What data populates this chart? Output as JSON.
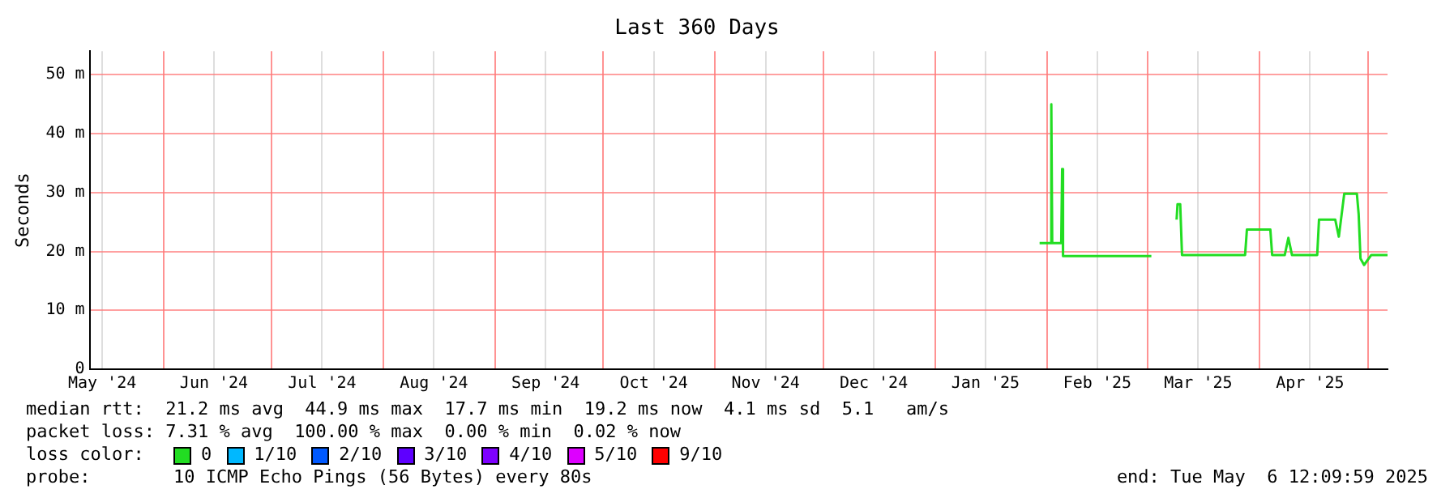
{
  "chart_data": {
    "type": "line",
    "title": "Last 360 Days",
    "ylabel": "Seconds",
    "xlim": [
      "2024-05-11T12:10",
      "2025-05-06T12:10"
    ],
    "xticks": [
      {
        "value": "2024-05-15",
        "label": "May '24"
      },
      {
        "value": "2024-06-01",
        "label": null
      },
      {
        "value": "2024-06-15",
        "label": "Jun '24"
      },
      {
        "value": "2024-07-01",
        "label": null
      },
      {
        "value": "2024-07-15",
        "label": "Jul '24"
      },
      {
        "value": "2024-08-01",
        "label": null
      },
      {
        "value": "2024-08-15",
        "label": "Aug '24"
      },
      {
        "value": "2024-09-01",
        "label": null
      },
      {
        "value": "2024-09-15",
        "label": "Sep '24"
      },
      {
        "value": "2024-10-01",
        "label": null
      },
      {
        "value": "2024-10-15",
        "label": "Oct '24"
      },
      {
        "value": "2024-11-01",
        "label": null
      },
      {
        "value": "2024-11-15",
        "label": "Nov '24"
      },
      {
        "value": "2024-12-01",
        "label": null
      },
      {
        "value": "2024-12-15",
        "label": "Dec '24"
      },
      {
        "value": "2025-01-01",
        "label": null
      },
      {
        "value": "2025-01-15",
        "label": "Jan '25"
      },
      {
        "value": "2025-02-01",
        "label": null
      },
      {
        "value": "2025-02-15",
        "label": "Feb '25"
      },
      {
        "value": "2025-03-01",
        "label": null
      },
      {
        "value": "2025-03-15",
        "label": "Mar '25"
      },
      {
        "value": "2025-04-01",
        "label": null
      },
      {
        "value": "2025-04-15",
        "label": "Apr '25"
      },
      {
        "value": "2025-05-01",
        "label": null
      }
    ],
    "ylim": [
      0,
      54
    ],
    "yticks": [
      0,
      {
        "value": 10,
        "label": "10 m"
      },
      {
        "value": 20,
        "label": "20 m"
      },
      {
        "value": 30,
        "label": "30 m"
      },
      {
        "value": 40,
        "label": "40 m"
      },
      {
        "value": 50,
        "label": "50 m"
      }
    ],
    "grid": true,
    "legend": "bottom",
    "legend_title": "loss color:",
    "x": [
      "2025-01-30T00:00",
      "2025-02-02T00:00",
      "2025-02-02T06:00",
      "2025-02-02T12:00",
      "2025-02-05T00:00",
      "2025-02-05T06:00",
      "2025-02-05T12:00",
      "2025-03-02T00:00",
      "2025-03-05T00:00",
      "2025-03-09T00:00",
      "2025-03-09T06:00",
      "2025-03-10T00:00",
      "2025-03-10T12:00",
      "2025-03-28T00:00",
      "2025-03-28T12:00",
      "2025-04-04T00:00",
      "2025-04-04T12:00",
      "2025-04-08T00:00",
      "2025-04-09T00:00",
      "2025-04-10T00:00",
      "2025-04-17T00:00",
      "2025-04-17T12:00",
      "2025-04-22T00:00",
      "2025-04-23T00:00",
      "2025-04-24T12:00",
      "2025-04-28T00:00",
      "2025-04-28T12:00",
      "2025-04-29T00:00",
      "2025-04-30T00:00",
      "2025-05-02T00:00",
      "2025-05-06T12:00"
    ],
    "series": [
      {
        "name": "0",
        "color": "#22dd22",
        "values": [
          21.4,
          21.4,
          45,
          21.4,
          21.4,
          34,
          19.2,
          19.2,
          null,
          25.4,
          28,
          28,
          19.4,
          19.4,
          23.7,
          23.7,
          19.4,
          19.4,
          22.3,
          19.4,
          19.4,
          25.4,
          25.4,
          22.5,
          29.8,
          29.8,
          26.3,
          18.8,
          17.7,
          19.4,
          19.4
        ]
      },
      {
        "name": "1/10",
        "color": "#00b8ff",
        "values": [
          null,
          null,
          null,
          null,
          null,
          null,
          null,
          null,
          null,
          null,
          null,
          null,
          null,
          null,
          null,
          null,
          null,
          null,
          null,
          null,
          null,
          null,
          null,
          null,
          null,
          null,
          null,
          null,
          null,
          null,
          null
        ]
      },
      {
        "name": "2/10",
        "color": "#0059ff",
        "values": [
          null,
          null,
          null,
          null,
          null,
          null,
          null,
          null,
          null,
          null,
          null,
          null,
          null,
          null,
          null,
          null,
          null,
          null,
          null,
          null,
          null,
          null,
          null,
          null,
          null,
          null,
          null,
          null,
          null,
          null,
          null
        ]
      },
      {
        "name": "3/10",
        "color": "#5e00ff",
        "values": [
          null,
          null,
          null,
          null,
          null,
          null,
          null,
          null,
          null,
          null,
          null,
          null,
          null,
          null,
          null,
          null,
          null,
          null,
          null,
          null,
          null,
          null,
          null,
          null,
          null,
          null,
          null,
          null,
          null,
          null,
          null
        ]
      },
      {
        "name": "4/10",
        "color": "#7e00ff",
        "values": [
          null,
          null,
          null,
          null,
          null,
          null,
          null,
          null,
          null,
          null,
          null,
          null,
          null,
          null,
          null,
          null,
          null,
          null,
          null,
          null,
          null,
          null,
          null,
          null,
          null,
          null,
          null,
          null,
          null,
          null,
          null
        ]
      },
      {
        "name": "5/10",
        "color": "#dd00ff",
        "values": [
          null,
          null,
          null,
          null,
          null,
          null,
          null,
          null,
          null,
          null,
          null,
          null,
          null,
          null,
          null,
          null,
          null,
          null,
          null,
          null,
          null,
          null,
          null,
          null,
          null,
          null,
          null,
          null,
          null,
          null,
          null
        ]
      },
      {
        "name": "9/10",
        "color": "#ff0000",
        "values": [
          null,
          null,
          null,
          null,
          null,
          null,
          null,
          null,
          null,
          null,
          null,
          null,
          null,
          null,
          null,
          null,
          null,
          null,
          null,
          null,
          null,
          null,
          null,
          null,
          null,
          null,
          null,
          null,
          null,
          null,
          null
        ]
      }
    ],
    "annotations": [
      "median rtt:  21.2 ms avg  44.9 ms max  17.7 ms min  19.2 ms now  4.1 ms sd  5.1   am/s",
      "packet loss: 7.31 % avg  100.00 % max  0.00 % min  0.02 % now",
      "probe:",
      "10 ICMP Echo Pings (56 Bytes) every 80s",
      "end: Tue May  6 12:09:59 2025"
    ]
  }
}
